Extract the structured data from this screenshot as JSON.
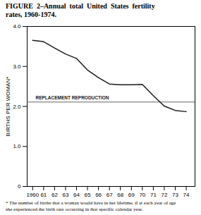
{
  "chart_data": {
    "type": "line",
    "title": "FIGURE  2–Annual  total  United  States  fertility\nrates, 1960-1974.",
    "x": [
      1960,
      1961,
      1962,
      1963,
      1964,
      1965,
      1966,
      1967,
      1968,
      1969,
      1970,
      1971,
      1972,
      1973,
      1974
    ],
    "values": [
      3.65,
      3.62,
      3.46,
      3.31,
      3.2,
      2.91,
      2.72,
      2.56,
      2.54,
      2.54,
      2.55,
      2.27,
      2.01,
      1.9,
      1.87
    ],
    "color": "#1a1a1a",
    "ylabel": "BIRTHS PER WOMAN*",
    "xlim": [
      1959.5,
      1974.8
    ],
    "xticks": [
      1960,
      {
        "value": 1961,
        "label": "61"
      },
      {
        "value": 1962,
        "label": "62"
      },
      {
        "value": 1963,
        "label": "63"
      },
      {
        "value": 1964,
        "label": "64"
      },
      {
        "value": 1965,
        "label": "65"
      },
      {
        "value": 1966,
        "label": "66"
      },
      {
        "value": 1967,
        "label": "67"
      },
      {
        "value": 1968,
        "label": "68"
      },
      {
        "value": 1969,
        "label": "69"
      },
      {
        "value": 1970,
        "label": "70"
      },
      {
        "value": 1971,
        "label": "71"
      },
      {
        "value": 1972,
        "label": "72"
      },
      {
        "value": 1973,
        "label": "73"
      },
      {
        "value": 1974,
        "label": "74"
      }
    ],
    "ylim": [
      0,
      4.0
    ],
    "yticks": [
      0,
      {
        "value": 1.0,
        "label": "1.0"
      },
      {
        "value": 2.0,
        "label": "2.0"
      },
      {
        "value": 3.0,
        "label": "3.0"
      },
      {
        "value": 4.0,
        "label": "4.0"
      }
    ],
    "grid": false,
    "annotations": [
      {
        "type": "hline",
        "y": 2.11,
        "text": "REPLACEMENT REPRODUCTION",
        "color": "#666666"
      }
    ],
    "footnote": "* The number of births that a woman would have in her lifetime, if at each year of age\nshe experienced the birth rate occurring in that specific calendar year."
  }
}
